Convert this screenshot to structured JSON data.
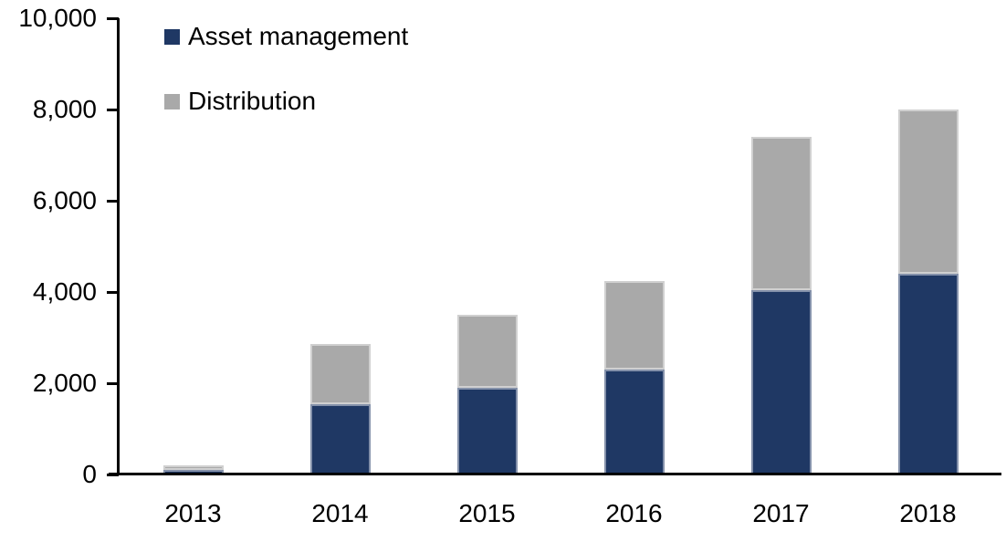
{
  "chart_data": {
    "type": "bar",
    "stacked": true,
    "title": "",
    "categories": [
      "2013",
      "2014",
      "2015",
      "2016",
      "2017",
      "2018"
    ],
    "series": [
      {
        "name": "Asset management",
        "color": "#1F3864",
        "values": [
          100,
          1550,
          1900,
          2300,
          4050,
          4400
        ]
      },
      {
        "name": "Distribution",
        "color": "#A9A9A9",
        "values": [
          100,
          1310,
          1600,
          1950,
          3350,
          3600
        ]
      }
    ],
    "totals": [
      200,
      2860,
      3500,
      4250,
      7400,
      8000
    ],
    "xlabel": "",
    "ylabel": "",
    "y_axis": {
      "min": 0,
      "max": 10000,
      "tick_interval": 2000,
      "tick_labels": [
        "0",
        "2,000",
        "4,000",
        "6,000",
        "8,000",
        "10,000"
      ]
    },
    "grid": false,
    "legend_position": "top-left-inside",
    "axis_color": "#000000",
    "text_color": "#000000",
    "background_color": "#FFFFFF"
  }
}
